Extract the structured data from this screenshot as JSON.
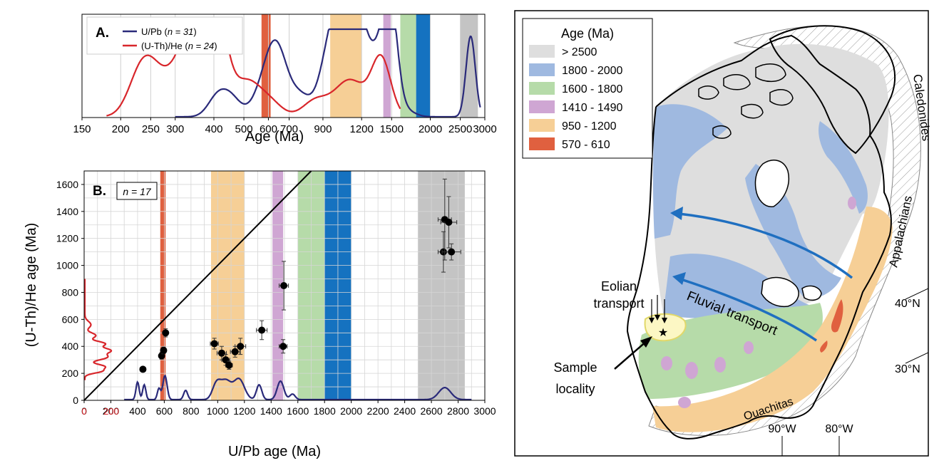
{
  "bands": [
    {
      "name": "570-610",
      "range": [
        570,
        610
      ],
      "color": "#e0603f"
    },
    {
      "name": "950-1200",
      "range": [
        950,
        1200
      ],
      "color": "#f6cf96"
    },
    {
      "name": "1410-1490",
      "range": [
        1410,
        1490
      ],
      "color": "#cfa6d3"
    },
    {
      "name": "1600-1800",
      "range": [
        1600,
        1800
      ],
      "color": "#b6dba9"
    },
    {
      "name": "1800-2000",
      "range": [
        1800,
        2000
      ],
      "color": "#1572c0"
    },
    {
      "name": ">2500",
      "range": [
        2500,
        2850
      ],
      "color": "#c4c4c4"
    }
  ],
  "chart_data": [
    {
      "type": "line",
      "panel_label": "A.",
      "xlabel": "Age (Ma)",
      "xscale": "log",
      "xlim": [
        150,
        3000
      ],
      "xticks": [
        "150",
        "200",
        "250",
        "300",
        "400",
        "500",
        "600",
        "700",
        "900",
        "1200",
        "1500",
        "2000",
        "2500",
        "3000"
      ],
      "legend_placement": "top-left",
      "series": [
        {
          "name": "U/Pb",
          "legend_text": "U/Pb (",
          "n_value": "n = 31",
          "color": "#2a2a7a",
          "peaks": [
            [
              410,
              0.22,
              0.03
            ],
            [
              455,
              0.2,
              0.03
            ],
            [
              590,
              0.3,
              0.04
            ],
            [
              640,
              0.65,
              0.035
            ],
            [
              760,
              0.2,
              0.03
            ],
            [
              950,
              0.32,
              0.03
            ],
            [
              1010,
              0.55,
              0.05
            ],
            [
              1080,
              0.62,
              0.04
            ],
            [
              1180,
              0.72,
              0.04
            ],
            [
              1380,
              0.52,
              0.025
            ],
            [
              1470,
              0.82,
              0.02
            ],
            [
              1530,
              0.45,
              0.02
            ],
            [
              1650,
              0.08,
              0.03
            ],
            [
              2700,
              0.92,
              0.015
            ]
          ]
        },
        {
          "name": "(U-Th)/He",
          "legend_text": "(U-Th)/He (",
          "n_value": "n = 24",
          "color": "#d8262b",
          "peaks": [
            [
              230,
              0.36,
              0.04
            ],
            [
              250,
              0.3,
              0.04
            ],
            [
              320,
              0.48,
              0.07
            ],
            [
              360,
              0.72,
              0.05
            ],
            [
              395,
              0.7,
              0.04
            ],
            [
              420,
              0.25,
              0.03
            ],
            [
              510,
              0.36,
              0.04
            ],
            [
              600,
              0.18,
              0.04
            ],
            [
              850,
              0.18,
              0.04
            ],
            [
              1100,
              0.42,
              0.05
            ],
            [
              1370,
              0.42,
              0.03
            ],
            [
              1420,
              0.25,
              0.03
            ]
          ]
        }
      ]
    },
    {
      "type": "scatter",
      "panel_label": "B.",
      "annotation_n": "n = 17",
      "xlabel": "U/Pb age (Ma)",
      "ylabel": "(U-Th)/He age (Ma)",
      "xlim": [
        0,
        3000
      ],
      "ylim": [
        0,
        1700
      ],
      "xticks": [
        0,
        200,
        400,
        600,
        800,
        1000,
        1200,
        1400,
        1600,
        1800,
        2000,
        2200,
        2400,
        2600,
        2800,
        3000
      ],
      "yticks": [
        0,
        200,
        400,
        600,
        800,
        1000,
        1200,
        1400,
        1600
      ],
      "reference_line": "1:1",
      "points": [
        {
          "x": 440,
          "y": 230,
          "xerr": 20,
          "yerr": 15
        },
        {
          "x": 580,
          "y": 330,
          "xerr": 15,
          "yerr": 25
        },
        {
          "x": 595,
          "y": 370,
          "xerr": 20,
          "yerr": 25
        },
        {
          "x": 610,
          "y": 500,
          "xerr": 15,
          "yerr": 30
        },
        {
          "x": 975,
          "y": 420,
          "xerr": 30,
          "yerr": 40
        },
        {
          "x": 1030,
          "y": 350,
          "xerr": 35,
          "yerr": 50
        },
        {
          "x": 1060,
          "y": 300,
          "xerr": 30,
          "yerr": 40
        },
        {
          "x": 1085,
          "y": 260,
          "xerr": 25,
          "yerr": 30
        },
        {
          "x": 1130,
          "y": 360,
          "xerr": 35,
          "yerr": 40
        },
        {
          "x": 1170,
          "y": 400,
          "xerr": 40,
          "yerr": 60
        },
        {
          "x": 1330,
          "y": 520,
          "xerr": 40,
          "yerr": 70
        },
        {
          "x": 1490,
          "y": 400,
          "xerr": 30,
          "yerr": 50
        },
        {
          "x": 1495,
          "y": 850,
          "xerr": 35,
          "yerr": 180
        },
        {
          "x": 2690,
          "y": 1100,
          "xerr": 40,
          "yerr": 150
        },
        {
          "x": 2700,
          "y": 1340,
          "xerr": 50,
          "yerr": 300
        },
        {
          "x": 2730,
          "y": 1320,
          "xerr": 60,
          "yerr": 190
        },
        {
          "x": 2750,
          "y": 1100,
          "xerr": 70,
          "yerr": 60
        }
      ],
      "upb_peaks": [
        [
          400,
          0.95,
          12
        ],
        [
          450,
          0.8,
          12
        ],
        [
          560,
          0.6,
          12
        ],
        [
          605,
          1.3,
          16
        ],
        [
          760,
          0.5,
          15
        ],
        [
          990,
          0.8,
          30
        ],
        [
          1060,
          1.0,
          40
        ],
        [
          1160,
          1.1,
          40
        ],
        [
          1310,
          0.8,
          20
        ],
        [
          1470,
          1.0,
          25
        ],
        [
          1560,
          0.3,
          20
        ],
        [
          2700,
          0.65,
          45
        ]
      ],
      "he_peaks": [
        [
          215,
          0.6,
          15
        ],
        [
          250,
          0.8,
          18
        ],
        [
          320,
          0.9,
          22
        ],
        [
          370,
          1.0,
          20
        ],
        [
          420,
          0.8,
          18
        ],
        [
          480,
          0.45,
          20
        ],
        [
          560,
          0.25,
          25
        ]
      ]
    }
  ],
  "map": {
    "legend_title": "Age (Ma)",
    "legend_items": [
      {
        "label": "> 2500",
        "color": "#dedede"
      },
      {
        "label": "1800 - 2000",
        "color": "#9fb9e0"
      },
      {
        "label": "1600 - 1800",
        "color": "#b6dba9"
      },
      {
        "label": "1410 - 1490",
        "color": "#cfa6d3"
      },
      {
        "label": "950 - 1200",
        "color": "#f6cf96"
      },
      {
        "label": "570 - 610",
        "color": "#e0603f"
      }
    ],
    "labels": {
      "caledonides": "Caledonides",
      "appalachians": "Appalachians",
      "ouachitas": "Ouachitas",
      "fluvial": "Fluvial transport",
      "eolian_1": "Eolian",
      "eolian_2": "transport",
      "sample_1": "Sample",
      "sample_2": "locality",
      "lat_40": "40°N",
      "lat_30": "30°N",
      "lon_90": "90°W",
      "lon_80": "80°W"
    },
    "arrow_color": "#1f6fc0"
  }
}
